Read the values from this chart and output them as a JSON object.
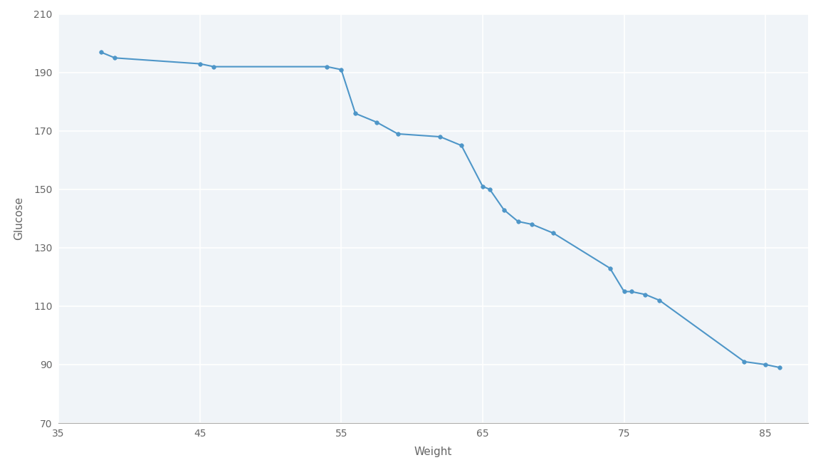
{
  "x": [
    38,
    39,
    45,
    46,
    54,
    55,
    56,
    57.5,
    59,
    62,
    63.5,
    65,
    65.5,
    66.5,
    67.5,
    68.5,
    70,
    74,
    75,
    75.5,
    76.5,
    77.5,
    83.5,
    85,
    86
  ],
  "y": [
    197,
    195,
    193,
    192,
    192,
    191,
    176,
    173,
    169,
    168,
    165,
    151,
    150,
    143,
    139,
    138,
    135,
    123,
    115,
    115,
    114,
    112,
    91,
    90,
    89
  ],
  "xlim": [
    35,
    88
  ],
  "ylim": [
    70,
    210
  ],
  "xticks": [
    35,
    45,
    55,
    65,
    75,
    85
  ],
  "yticks": [
    70,
    90,
    110,
    130,
    150,
    170,
    190,
    210
  ],
  "xlabel": "Weight",
  "ylabel": "Glucose",
  "line_color": "#4e96c8",
  "marker_color": "#4e96c8",
  "bg_color": "#ffffff",
  "plot_bg_color": "#f0f4f8",
  "grid_color": "#ffffff",
  "axes_color": "#aaaaaa",
  "tick_label_color": "#666666",
  "font_size_label": 11,
  "line_width": 1.5,
  "marker_size": 4
}
